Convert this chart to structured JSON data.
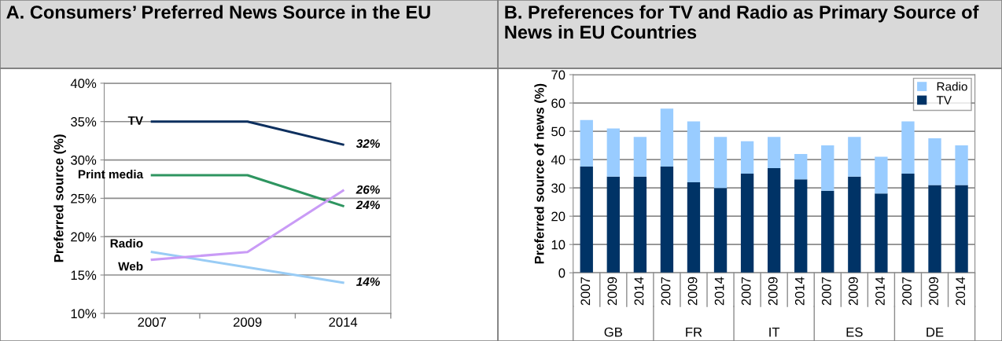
{
  "chart_data": [
    {
      "type": "line",
      "title": "A. Consumers’ Preferred News Source in the EU",
      "ylabel": "Preferred source (%)",
      "categories": [
        "2007",
        "2009",
        "2014"
      ],
      "series": [
        {
          "name": "TV",
          "color": "#0d2f5e",
          "values": [
            35,
            35,
            32
          ],
          "value_labels": [
            null,
            null,
            "32%"
          ]
        },
        {
          "name": "Print media",
          "color": "#2e9560",
          "values": [
            28,
            28,
            24
          ],
          "value_labels": [
            null,
            null,
            "24%"
          ]
        },
        {
          "name": "Radio",
          "color": "#99ccf5",
          "values": [
            18,
            16,
            14
          ],
          "value_labels": [
            null,
            null,
            "14%"
          ]
        },
        {
          "name": "Web",
          "color": "#c99bf6",
          "values": [
            17,
            18,
            26
          ],
          "value_labels": [
            null,
            null,
            "26%"
          ]
        }
      ],
      "ylim": [
        10,
        40
      ],
      "yticks": [
        {
          "value": 10,
          "label": "10%"
        },
        {
          "value": 15,
          "label": "15%"
        },
        {
          "value": 20,
          "label": "20%"
        },
        {
          "value": 25,
          "label": "25%"
        },
        {
          "value": 30,
          "label": "30%"
        },
        {
          "value": 35,
          "label": "35%"
        },
        {
          "value": 40,
          "label": "40%"
        }
      ],
      "grid": "y",
      "legend": false,
      "marker": "none",
      "line_style": "solid"
    },
    {
      "type": "bar",
      "stacked": true,
      "title": "B. Preferences for TV and Radio as Primary Source of News in EU Countries",
      "ylabel": "Preferred source of news (%)",
      "categories": [
        "2007",
        "2009",
        "2014",
        "2007",
        "2009",
        "2014",
        "2007",
        "2009",
        "2014",
        "2007",
        "2009",
        "2014",
        "2007",
        "2009",
        "2014"
      ],
      "annotations": [
        "GB",
        "FR",
        "IT",
        "ES",
        "DE"
      ],
      "series": [
        {
          "name": "TV",
          "color": "#003366",
          "values": [
            37.5,
            34,
            34,
            37.5,
            32,
            30,
            35,
            37,
            33,
            29,
            34,
            28,
            35,
            31,
            31
          ]
        },
        {
          "name": "Radio",
          "color": "#99ccff",
          "values": [
            16.5,
            17,
            14,
            20.5,
            21.5,
            18,
            11.5,
            11,
            9,
            16,
            14,
            13,
            18.5,
            16.5,
            14
          ]
        }
      ],
      "ylim": [
        0,
        70
      ],
      "yticks": [
        0,
        10,
        20,
        30,
        40,
        50,
        60,
        70
      ],
      "grid": "y",
      "legend": "top right"
    }
  ]
}
